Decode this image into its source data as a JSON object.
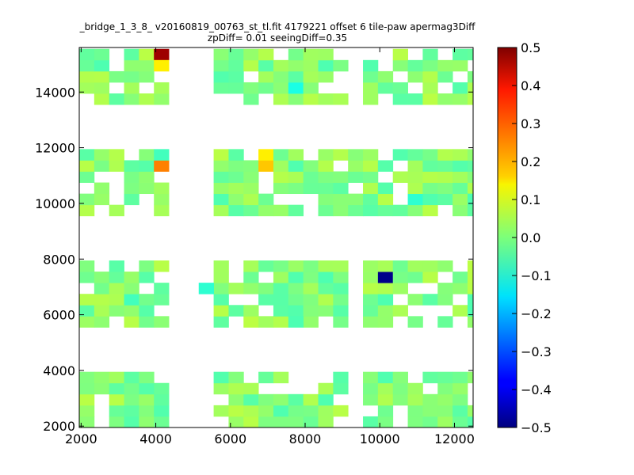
{
  "chart_data": {
    "type": "heatmap",
    "title": "_bridge_1_3_8_ v20160819_00763_st_tl.fit 4179221 offset 6 tile-paw apermag3Diff",
    "subtitle": "zpDiff= 0.01 seeingDiff=0.35",
    "xlabel": "",
    "ylabel": "",
    "xlim": [
      1950,
      12500
    ],
    "ylim": [
      1950,
      15600
    ],
    "x_ticks": [
      "2000",
      "4000",
      "6000",
      "8000",
      "10000",
      "12000"
    ],
    "y_ticks": [
      "2000",
      "4000",
      "6000",
      "8000",
      "10000",
      "12000",
      "14000"
    ],
    "colorbar": {
      "range": [
        -0.5,
        0.5
      ],
      "colormap": "jet",
      "ticks": [
        "0.5",
        "0.4",
        "0.3",
        "0.2",
        "0.1",
        "0.0",
        "−0.1",
        "−0.2",
        "−0.3",
        "−0.4",
        "−0.5"
      ]
    },
    "cell_size": 400,
    "x_origin": 1950,
    "y_origin": 1950,
    "groups": [
      {
        "row": 0,
        "col": 0,
        "rows": 5,
        "cols": 6
      },
      {
        "row": 0,
        "col": 9,
        "rows": 5,
        "cols": 9
      },
      {
        "row": 0,
        "col": 19,
        "rows": 5,
        "cols": 9
      },
      {
        "row": 0,
        "col": 29,
        "rows": 5,
        "cols": 6
      },
      {
        "row": 9,
        "col": 0,
        "rows": 6,
        "cols": 6
      },
      {
        "row": 9,
        "col": 9,
        "rows": 6,
        "cols": 9
      },
      {
        "row": 9,
        "col": 19,
        "rows": 6,
        "cols": 9
      },
      {
        "row": 9,
        "col": 29,
        "rows": 6,
        "cols": 6
      },
      {
        "row": 19,
        "col": 0,
        "rows": 6,
        "cols": 6
      },
      {
        "row": 19,
        "col": 9,
        "rows": 6,
        "cols": 6
      },
      {
        "row": 19,
        "col": 15,
        "rows": 6,
        "cols": 4
      },
      {
        "row": 19,
        "col": 19,
        "rows": 6,
        "cols": 9
      },
      {
        "row": 19,
        "col": 29,
        "rows": 6,
        "cols": 6
      },
      {
        "row": 29,
        "col": 0,
        "rows": 5,
        "cols": 6
      },
      {
        "row": 29,
        "col": 9,
        "rows": 5,
        "cols": 9
      },
      {
        "row": 29,
        "col": 19,
        "rows": 5,
        "cols": 9
      },
      {
        "row": 29,
        "col": 29,
        "rows": 5,
        "cols": 6
      }
    ],
    "highlights": [
      {
        "x": 4150,
        "y": 15350,
        "value": 0.47
      },
      {
        "x": 4150,
        "y": 14950,
        "value": 0.14
      },
      {
        "x": 4150,
        "y": 11150,
        "value": 0.25
      },
      {
        "x": 4150,
        "y": 11550,
        "value": -0.06
      },
      {
        "x": 7050,
        "y": 11550,
        "value": 0.14
      },
      {
        "x": 7050,
        "y": 11150,
        "value": 0.18
      },
      {
        "x": 10050,
        "y": 7350,
        "value": -0.49
      },
      {
        "x": 7650,
        "y": 14150,
        "value": -0.1
      },
      {
        "x": 5250,
        "y": 6950,
        "value": -0.08
      },
      {
        "x": 10950,
        "y": 9950,
        "value": -0.08
      },
      {
        "x": 3150,
        "y": 6550,
        "value": -0.06
      },
      {
        "x": 7850,
        "y": 5750,
        "value": -0.05
      },
      {
        "x": 12550,
        "y": 9950,
        "value": -0.05
      }
    ]
  }
}
